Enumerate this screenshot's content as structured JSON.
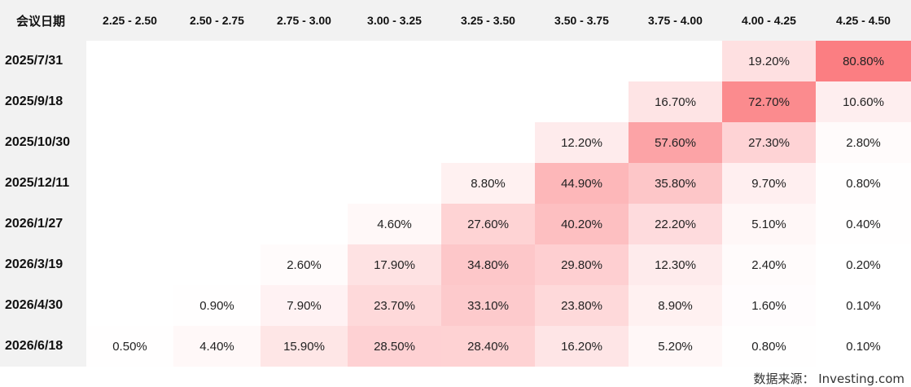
{
  "header": {
    "corner_label": "会议日期"
  },
  "source": "数据来源： Investing.com",
  "colors": {
    "heat_base": "#fa5f64",
    "header_bg": "#f2f2f2"
  },
  "chart_data": {
    "type": "heatmap",
    "columns": [
      "2.25 - 2.50",
      "2.50 - 2.75",
      "2.75 - 3.00",
      "3.00 - 3.25",
      "3.25 - 3.50",
      "3.50 - 3.75",
      "3.75 - 4.00",
      "4.00 - 4.25",
      "4.25 - 4.50"
    ],
    "rows": [
      {
        "date": "2025/7/31",
        "values": [
          null,
          null,
          null,
          null,
          null,
          null,
          null,
          19.2,
          80.8
        ]
      },
      {
        "date": "2025/9/18",
        "values": [
          null,
          null,
          null,
          null,
          null,
          null,
          16.7,
          72.7,
          10.6
        ]
      },
      {
        "date": "2025/10/30",
        "values": [
          null,
          null,
          null,
          null,
          null,
          12.2,
          57.6,
          27.3,
          2.8
        ]
      },
      {
        "date": "2025/12/11",
        "values": [
          null,
          null,
          null,
          null,
          8.8,
          44.9,
          35.8,
          9.7,
          0.8
        ]
      },
      {
        "date": "2026/1/27",
        "values": [
          null,
          null,
          null,
          4.6,
          27.6,
          40.2,
          22.2,
          5.1,
          0.4
        ]
      },
      {
        "date": "2026/3/19",
        "values": [
          null,
          null,
          2.6,
          17.9,
          34.8,
          29.8,
          12.3,
          2.4,
          0.2
        ]
      },
      {
        "date": "2026/4/30",
        "values": [
          null,
          0.9,
          7.9,
          23.7,
          33.1,
          23.8,
          8.9,
          1.6,
          0.1
        ]
      },
      {
        "date": "2026/6/18",
        "values": [
          0.5,
          4.4,
          15.9,
          28.5,
          28.4,
          16.2,
          5.2,
          0.8,
          0.1
        ]
      }
    ]
  }
}
